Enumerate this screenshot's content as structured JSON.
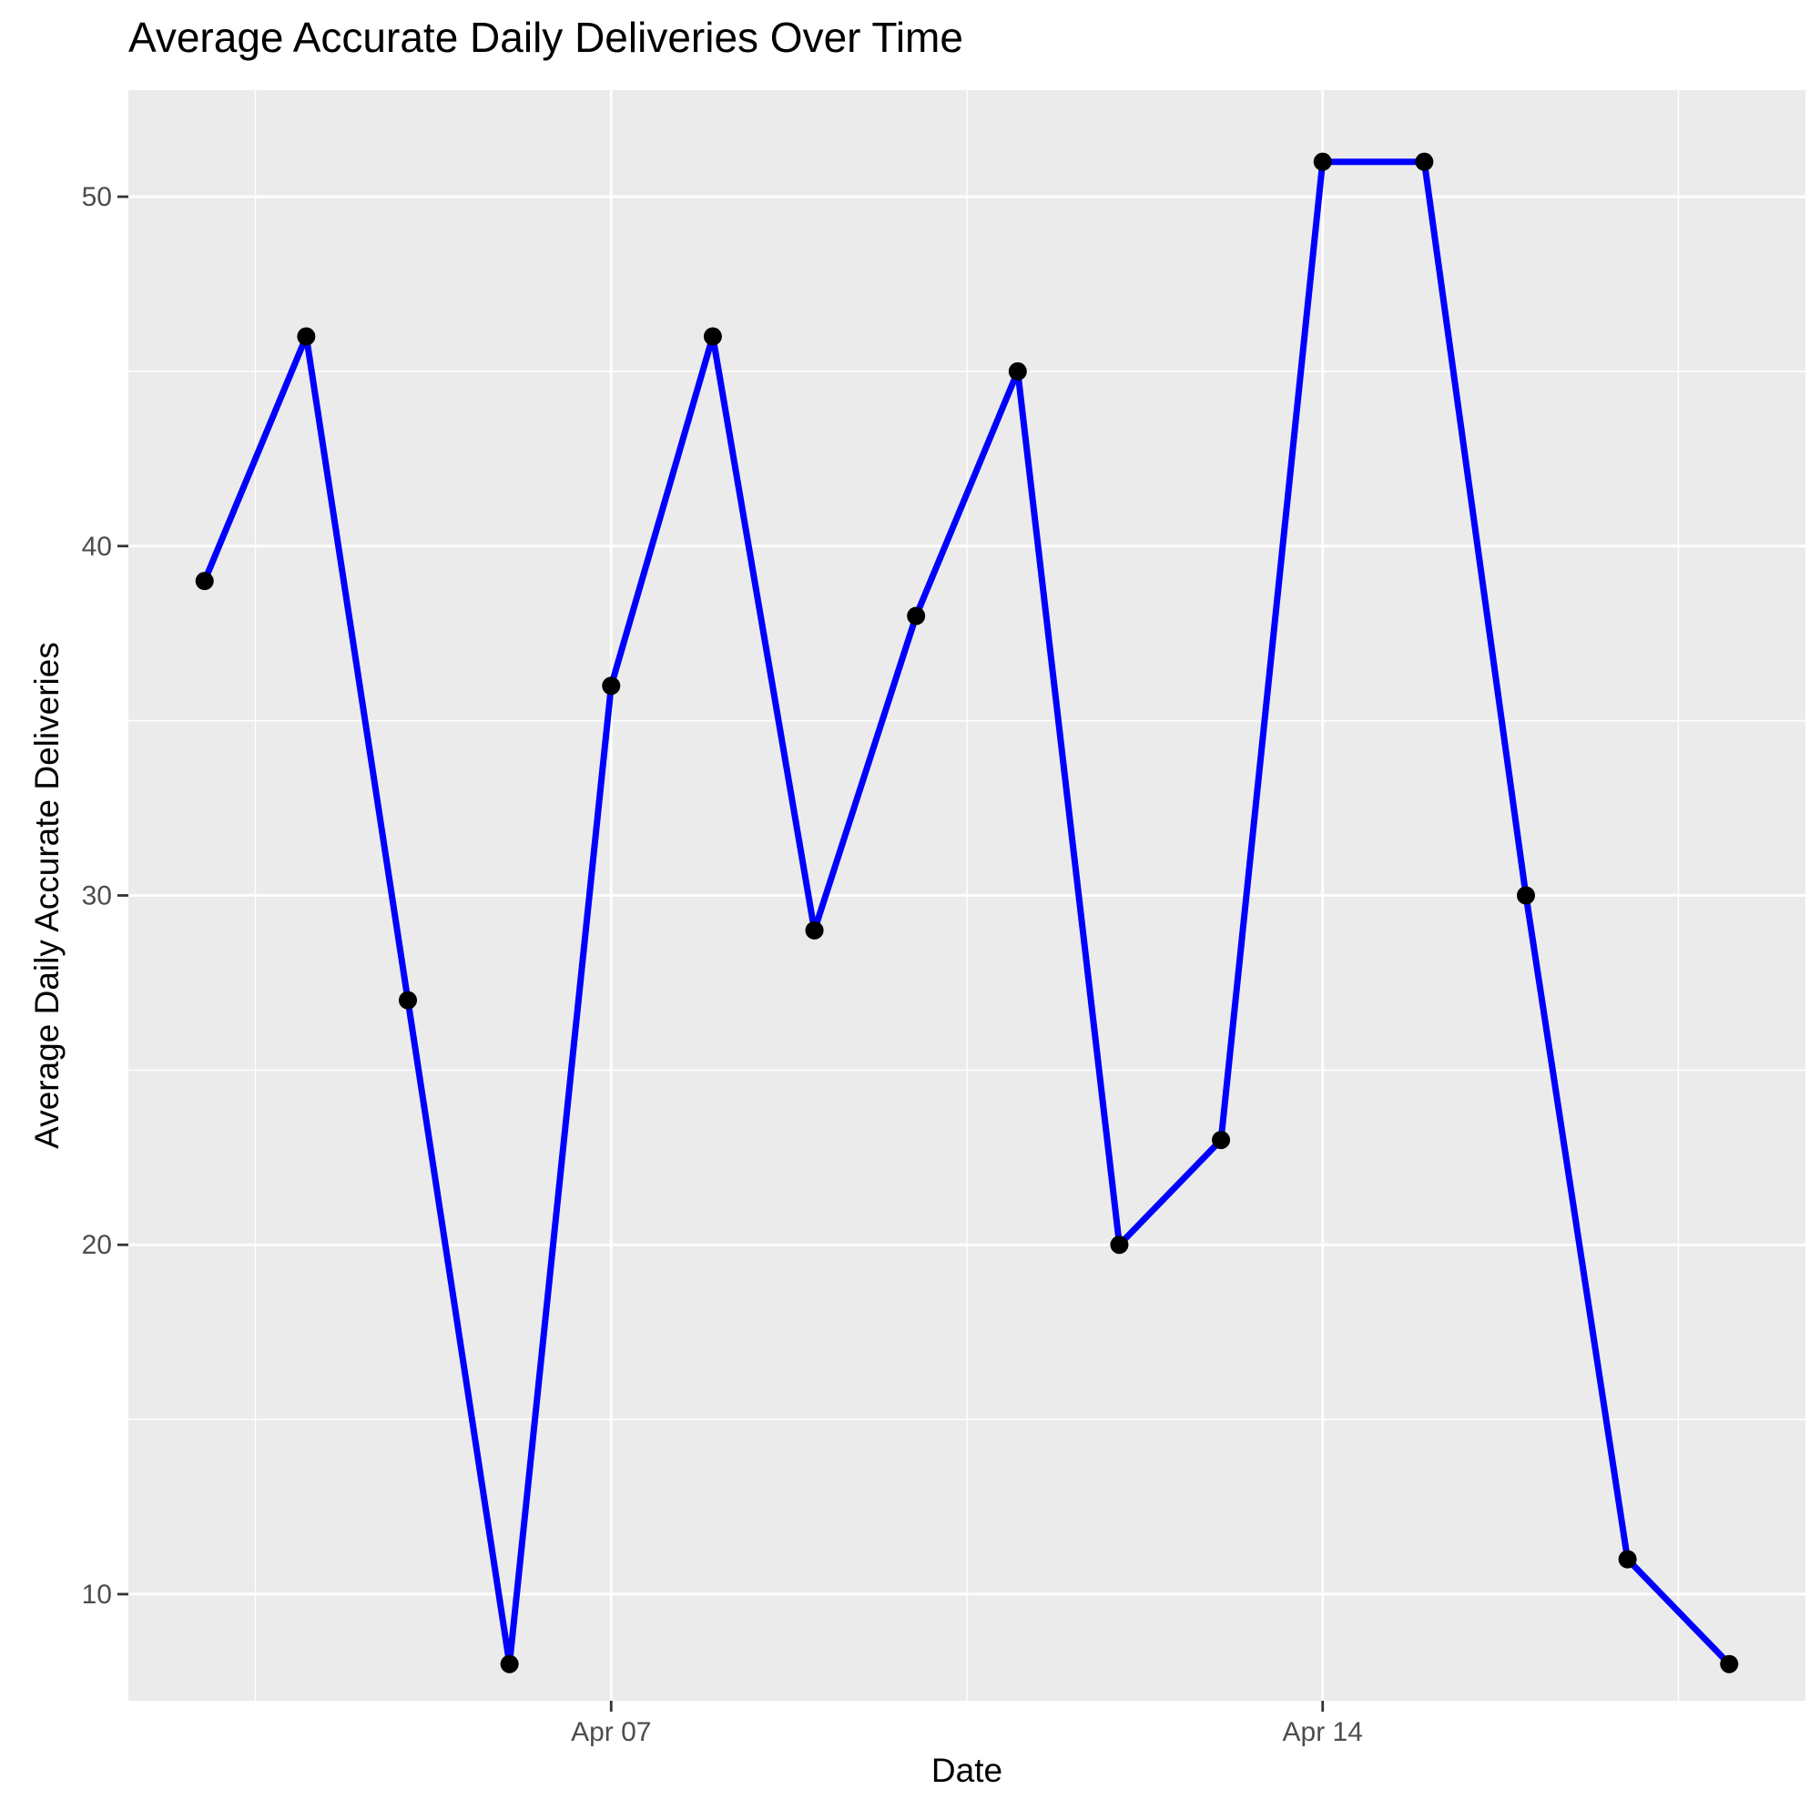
{
  "chart_data": {
    "type": "line",
    "title": "Average Accurate Daily Deliveries Over Time",
    "xlabel": "Date",
    "ylabel": "Average Daily Accurate Deliveries",
    "x_tick_labels": [
      "Apr 07",
      "Apr 14"
    ],
    "y_tick_labels": [
      "10",
      "20",
      "30",
      "40",
      "50"
    ],
    "y_ticks": [
      10,
      20,
      30,
      40,
      50
    ],
    "ylim": [
      6.95,
      53.05
    ],
    "x": [
      "2024-04-03",
      "2024-04-04",
      "2024-04-05",
      "2024-04-06",
      "2024-04-07",
      "2024-04-08",
      "2024-04-09",
      "2024-04-10",
      "2024-04-11",
      "2024-04-12",
      "2024-04-13",
      "2024-04-14",
      "2024-04-15",
      "2024-04-16",
      "2024-04-17",
      "2024-04-18"
    ],
    "values": [
      39,
      46,
      27,
      8,
      36,
      46,
      29,
      38,
      45,
      20,
      23,
      51,
      51,
      30,
      11,
      8
    ],
    "line_color": "#0000ff",
    "point_color": "#000000",
    "panel_background": "#ebebeb",
    "grid": true,
    "legend": "none"
  }
}
